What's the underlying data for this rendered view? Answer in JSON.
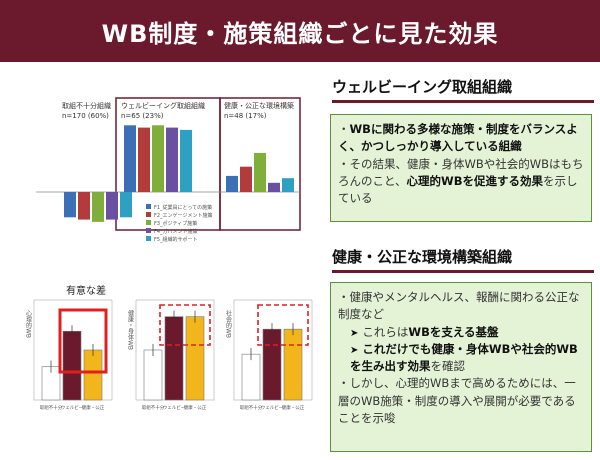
{
  "title": "WB制度・施策組織ごとに見た効果",
  "section1": {
    "heading": "ウェルビーイング取組組織",
    "line1_a": "・",
    "line1_bold": "WBに関わる多様な施策・制度をバランスよく、かつしっかり導入している組織",
    "line2_a": "・その結果、健康・身体WBや社会的WBはもちろんのこと、",
    "line2_bold": "心理的WBを促進する効果",
    "line2_b": "を示している"
  },
  "section2": {
    "heading": "健康・公正な環境構築組織",
    "p1": "・健康やメンタルヘルス、報酬に関わる公正な制度など",
    "b1_pre": "これらは",
    "b1_bold": "WBを支える基盤",
    "b2_bold": "これだけでも健康・身体WBや社会的WBを生み出す効果",
    "b2_post": "を確認",
    "p2": "・しかし、心理的WBまで高めるためには、一層のWB施策・制度の導入や展開が必要であることを示唆"
  },
  "chart_top": {
    "group1_name": "取組不十分組織",
    "group1_n": "n=170 (60%)",
    "group2_name": "ウェルビーイング取組組織",
    "group2_n": "n=65 (23%)",
    "group3_name": "健康・公正な環境構築",
    "group3_n": "n=48 (17%)",
    "legend": [
      "F1_従業員にとっての施策",
      "F2_エンゲージメント施策",
      "F3_ポジティブ施策",
      "F4_ガバメント施策",
      "F5_組織的サポート"
    ]
  },
  "chart_bottom": {
    "annotation": "有意な差",
    "ylabel1": "心理的WB",
    "ylabel2": "健康・身体WB",
    "ylabel3": "社会的WB",
    "xlabels": [
      "取組不十分組織",
      "ウェルビーイング取組組織",
      "健康・公正な環境構築組織"
    ]
  },
  "chart_data": [
    {
      "type": "bar",
      "categories": [
        "取組不十分組織",
        "ウェルビーイング取組組織",
        "健康・公正な環境構築組織"
      ],
      "series": [
        {
          "name": "F1",
          "values": [
            -0.55,
            1.45,
            0.35
          ]
        },
        {
          "name": "F2",
          "values": [
            -0.6,
            1.4,
            0.55
          ]
        },
        {
          "name": "F3",
          "values": [
            -0.65,
            1.45,
            0.85
          ]
        },
        {
          "name": "F4",
          "values": [
            -0.6,
            1.4,
            0.2
          ]
        },
        {
          "name": "F5",
          "values": [
            -0.55,
            1.35,
            0.3
          ]
        }
      ],
      "colors": [
        "#3b6fb6",
        "#b23b3b",
        "#7fae3b",
        "#6b4fa0",
        "#2f9fc2"
      ],
      "ylim": [
        -1,
        1.8
      ]
    },
    {
      "type": "bar",
      "panels": [
        {
          "values": [
            2.6,
            3.45,
            3.0
          ]
        },
        {
          "values": [
            3.0,
            3.8,
            3.8
          ]
        },
        {
          "values": [
            2.9,
            3.5,
            3.5
          ]
        }
      ],
      "colors": [
        "#ffffff",
        "#6b1a2d",
        "#f2b51c"
      ]
    }
  ]
}
